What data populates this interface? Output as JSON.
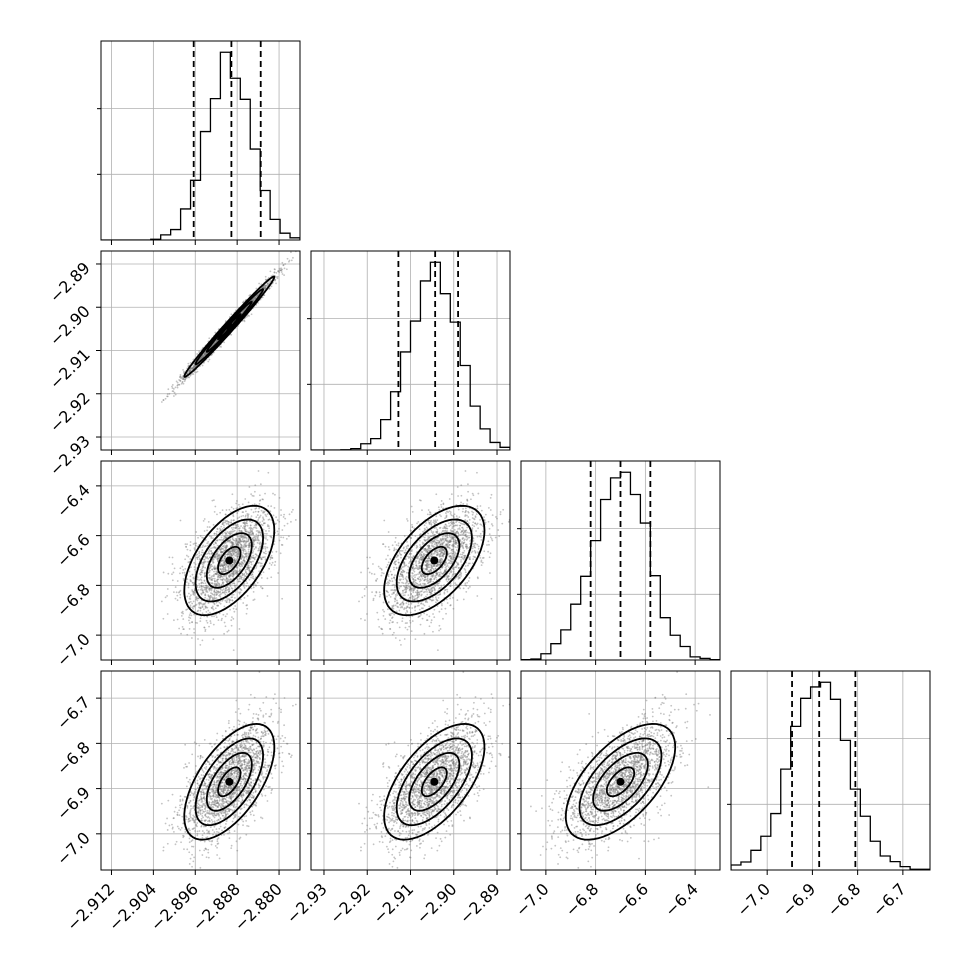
{
  "chart_data": {
    "type": "corner",
    "n_params": 4,
    "style": {
      "grid": true,
      "hist_color": "#000000",
      "contour_fill": [
        "#ffffff",
        "#d8d8d8",
        "#a0a0a0",
        "#606060",
        "#000000"
      ],
      "point_color": "#808080"
    },
    "params": [
      {
        "range": [
          -2.914,
          -2.876
        ],
        "ticks": [
          -2.912,
          -2.904,
          -2.896,
          -2.888,
          -2.88
        ],
        "tick_labels": [
          "−2.912",
          "−2.904",
          "−2.896",
          "−2.888",
          "−2.880"
        ],
        "mean": -2.8895,
        "sd": 0.0043,
        "quantiles": [
          -2.8963,
          -2.8891,
          -2.8835
        ]
      },
      {
        "range": [
          -2.933,
          -2.887
        ],
        "ticks": [
          -2.93,
          -2.92,
          -2.91,
          -2.9,
          -2.89
        ],
        "tick_labels": [
          "−2.93",
          "−2.92",
          "−2.91",
          "−2.90",
          "−2.89"
        ],
        "mean": -2.9045,
        "sd": 0.0058,
        "quantiles": [
          -2.9128,
          -2.9043,
          -2.899
        ]
      },
      {
        "range": [
          -7.1,
          -6.3
        ],
        "ticks": [
          -7.0,
          -6.8,
          -6.6,
          -6.4
        ],
        "tick_labels": [
          "−7.0",
          "−6.8",
          "−6.6",
          "−6.4"
        ],
        "mean": -6.7,
        "sd": 0.11,
        "quantiles": [
          -6.82,
          -6.7,
          -6.58
        ]
      },
      {
        "range": [
          -7.08,
          -6.64
        ],
        "ticks": [
          -7.0,
          -6.9,
          -6.8,
          -6.7
        ],
        "tick_labels": [
          "−7.0",
          "−6.9",
          "−6.8",
          "−6.7"
        ],
        "mean": -6.885,
        "sd": 0.064,
        "quantiles": [
          -6.945,
          -6.885,
          -6.805
        ]
      }
    ],
    "correlations": [
      [
        1,
        0.99,
        0.55,
        0.6
      ],
      [
        0.99,
        1,
        0.55,
        0.6
      ],
      [
        0.55,
        0.55,
        1,
        0.6
      ],
      [
        0.6,
        0.6,
        0.6,
        1
      ]
    ]
  }
}
